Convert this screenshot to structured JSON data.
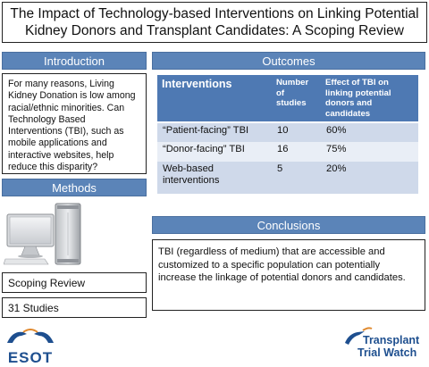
{
  "title": "The Impact of Technology-based Interventions on Linking Potential Kidney Donors and Transplant Candidates: A Scoping Review",
  "introduction": {
    "heading": "Introduction",
    "text": "For many reasons, Living Kidney Donation is low among racial/ethnic minorities. Can Technology Based Interventions (TBI), such as mobile applications and interactive websites, help reduce this disparity?"
  },
  "methods": {
    "heading": "Methods",
    "items": [
      "Scoping Review",
      "31 Studies"
    ]
  },
  "outcomes": {
    "heading": "Outcomes",
    "columns": [
      "Interventions",
      "Number of studies",
      "Effect of TBI on linking potential donors and candidates"
    ],
    "rows": [
      {
        "intervention": "“Patient-facing” TBI",
        "studies": "10",
        "effect": "60%"
      },
      {
        "intervention": "“Donor-facing” TBI",
        "studies": "16",
        "effect": "75%"
      },
      {
        "intervention": "Web-based interventions",
        "studies": "5",
        "effect": "20%"
      }
    ]
  },
  "conclusions": {
    "heading": "Conclusions",
    "text": "TBI (regardless of medium) that are accessible and customized to a specific population can potentially increase the linkage of potential donors and candidates."
  },
  "logos": {
    "left": "ESOT",
    "right_line1": "Transplant",
    "right_line2": "Trial Watch"
  },
  "colors": {
    "banner": "#5b84b8",
    "table_header": "#4e79b3",
    "brand_blue": "#1e4f8f",
    "accent_orange": "#e0892e"
  }
}
